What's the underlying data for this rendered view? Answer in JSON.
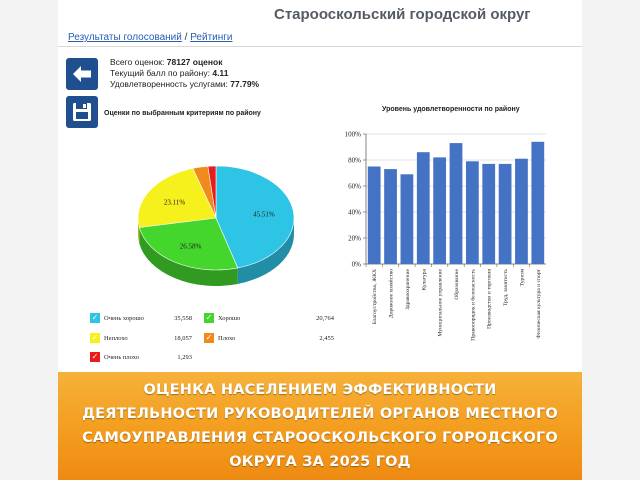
{
  "header": {
    "title": "Старооскольский городской округ",
    "breadcrumb": {
      "link1": "Результаты голосований",
      "separator": "/",
      "link2": "Рейтинги"
    }
  },
  "stats": {
    "total_label": "Всего оценок:",
    "total_value": "78127 оценок",
    "score_label": "Текущий балл по району:",
    "score_value": "4.11",
    "satisfaction_label": "Удовлетворенность услугами:",
    "satisfaction_value": "77.79%"
  },
  "icons": {
    "back": "arrow-left-icon",
    "save": "floppy-disk-icon"
  },
  "pie_panel": {
    "title": "Оценки по выбранным критериям по району"
  },
  "bar_panel": {
    "title": "Уровень удовлетворенности по району"
  },
  "legend": [
    {
      "label": "Очень хорошо",
      "value": "35,558",
      "color": "#2ec4e6",
      "mark": "✓"
    },
    {
      "label": "Хорошо",
      "value": "20,764",
      "color": "#44d62c",
      "mark": "✓"
    },
    {
      "label": "Неплохо",
      "value": "18,057",
      "color": "#f6f01c",
      "mark": "✓"
    },
    {
      "label": "Плохо",
      "value": "2,455",
      "color": "#f08a1c",
      "mark": "✓"
    },
    {
      "label": "Очень плохо",
      "value": "1,293",
      "color": "#e81c1c",
      "mark": "✓"
    }
  ],
  "chart_data": [
    {
      "type": "pie",
      "title": "Оценки по выбранным критериям по району",
      "slices": [
        {
          "label": "Очень хорошо",
          "value": 45.51,
          "display": "45.51%",
          "color": "#2ec4e6"
        },
        {
          "label": "Хорошо",
          "value": 26.58,
          "display": "26.58%",
          "color": "#44d62c"
        },
        {
          "label": "Неплохо",
          "value": 23.11,
          "display": "23.11%",
          "color": "#f6f01c"
        },
        {
          "label": "Плохо",
          "value": 3.14,
          "display": "",
          "color": "#f08a1c"
        },
        {
          "label": "Очень плохо",
          "value": 1.66,
          "display": "",
          "color": "#e81c1c"
        }
      ]
    },
    {
      "type": "bar",
      "title": "Уровень удовлетворенности по району",
      "categories": [
        "Благоустройство, ЖКХ",
        "Дорожное хозяйство",
        "Здравоохранение",
        "Культура",
        "Муниципальное управление",
        "Образование",
        "Правопорядок и безопасность",
        "Производство и торговля",
        "Труд, занятость",
        "Туризм",
        "Физическая культура и спорт"
      ],
      "values": [
        75,
        73,
        69,
        86,
        82,
        93,
        79,
        77,
        77,
        81,
        94
      ],
      "ylim": [
        0,
        100
      ],
      "yticks": [
        "0%",
        "20%",
        "40%",
        "60%",
        "80%",
        "100%"
      ],
      "grid": true,
      "color": "#4472c4"
    }
  ],
  "banner": {
    "line1": "ОЦЕНКА НАСЕЛЕНИЕМ ЭФФЕКТИВНОСТИ",
    "line2": "ДЕЯТЕЛЬНОСТИ РУКОВОДИТЕЛЕЙ ОРГАНОВ МЕСТНОГО",
    "line3": "САМОУПРАВЛЕНИЯ СТАРООСКОЛЬСКОГО ГОРОДСКОГО",
    "line4": "ОКРУГА ЗА 2025 ГОД"
  }
}
